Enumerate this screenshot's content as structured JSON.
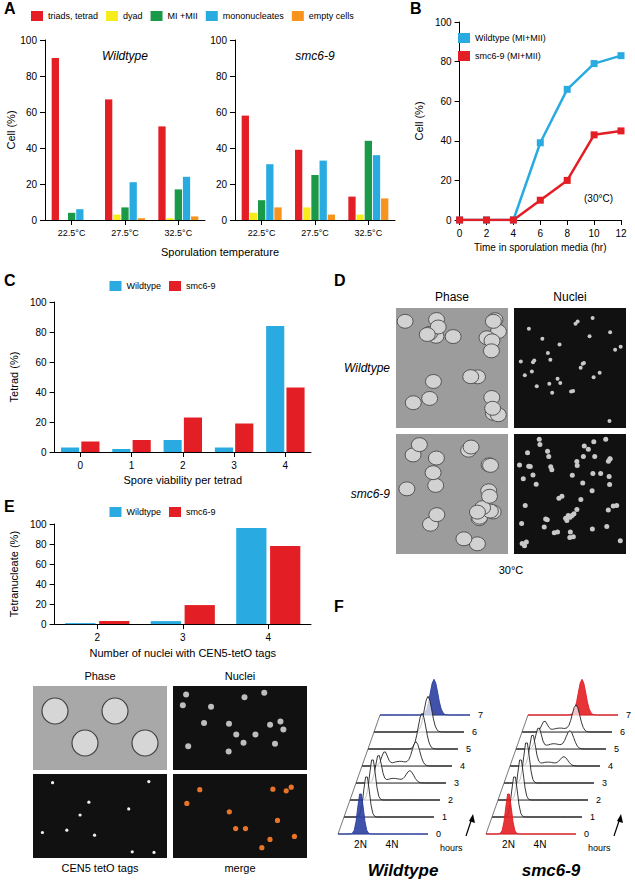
{
  "panel_labels": [
    "A",
    "B",
    "C",
    "D",
    "E",
    "F"
  ],
  "chart_data": [
    {
      "type": "bar",
      "title": "Wildtype",
      "xlabel": "Sporulation temperature",
      "ylabel": "Cell (%)",
      "categories": [
        "22.5°C",
        "27.5°C",
        "32.5°C"
      ],
      "series": [
        {
          "name": "triads, tetrad",
          "color": "#e31e24",
          "values": [
            90,
            67,
            52
          ]
        },
        {
          "name": "dyad",
          "color": "#f7ec1b",
          "values": [
            0,
            3,
            1
          ]
        },
        {
          "name": "MI +MII",
          "color": "#1a9a48",
          "values": [
            4,
            7,
            17
          ]
        },
        {
          "name": "mononucleates",
          "color": "#29abe2",
          "values": [
            6,
            21,
            24
          ]
        },
        {
          "name": "empty cells",
          "color": "#f7941d",
          "values": [
            0,
            1,
            2
          ]
        }
      ],
      "ylim": [
        0,
        100
      ],
      "yticks": [
        0,
        20,
        40,
        60,
        80,
        100
      ],
      "legend": "top"
    },
    {
      "type": "bar",
      "title": "smc6-9",
      "categories": [
        "22.5°C",
        "27.5°C",
        "32.5°C"
      ],
      "series": [
        {
          "name": "triads, tetrad",
          "color": "#e31e24",
          "values": [
            58,
            39,
            13
          ]
        },
        {
          "name": "dyad",
          "color": "#f7ec1b",
          "values": [
            4,
            7,
            3
          ]
        },
        {
          "name": "MI +MII",
          "color": "#1a9a48",
          "values": [
            11,
            25,
            44
          ]
        },
        {
          "name": "mononucleates",
          "color": "#29abe2",
          "values": [
            31,
            33,
            36
          ]
        },
        {
          "name": "empty cells",
          "color": "#f7941d",
          "values": [
            7,
            3,
            12
          ]
        }
      ],
      "ylim": [
        0,
        100
      ],
      "yticks": [
        0,
        20,
        40,
        60,
        80,
        100
      ]
    },
    {
      "type": "line",
      "xlabel": "Time in sporulation media (hr)",
      "ylabel": "Cell (%)",
      "x": [
        0,
        2,
        4,
        6,
        8,
        10,
        12
      ],
      "series": [
        {
          "name": "Wildtype (MI+MII)",
          "color": "#29abe2",
          "values": [
            0,
            0,
            0,
            39,
            66,
            79,
            83
          ]
        },
        {
          "name": "smc6-9 (MI+MII)",
          "color": "#e31e24",
          "values": [
            0,
            0,
            0,
            10,
            20,
            43,
            45
          ]
        }
      ],
      "xlim": [
        0,
        12
      ],
      "xticks": [
        0,
        2,
        4,
        6,
        8,
        10,
        12
      ],
      "ylim": [
        0,
        100
      ],
      "yticks": [
        0,
        20,
        40,
        60,
        80,
        100
      ],
      "marker": "square",
      "annotations": [
        "(30°C)"
      ],
      "legend": "top left"
    },
    {
      "type": "bar",
      "xlabel": "Spore viability per tetrad",
      "ylabel": "Tetrad (%)",
      "categories": [
        "0",
        "1",
        "2",
        "3",
        "4"
      ],
      "series": [
        {
          "name": "Wildtype",
          "color": "#29abe2",
          "values": [
            3,
            2,
            8,
            3,
            84
          ]
        },
        {
          "name": "smc6-9",
          "color": "#e31e24",
          "values": [
            7,
            8,
            23,
            19,
            43
          ]
        }
      ],
      "ylim": [
        0,
        100
      ],
      "yticks": [
        0,
        20,
        40,
        60,
        80,
        100
      ],
      "legend": "top"
    },
    {
      "type": "bar",
      "xlabel": "Number of nuclei with CEN5-tetO tags",
      "ylabel": "Tetranucleate (%)",
      "categories": [
        "2",
        "3",
        "4"
      ],
      "series": [
        {
          "name": "Wildtype",
          "color": "#29abe2",
          "values": [
            1,
            3,
            96
          ]
        },
        {
          "name": "smc6-9",
          "color": "#e31e24",
          "values": [
            3,
            19,
            78
          ]
        }
      ],
      "ylim": [
        0,
        100
      ],
      "yticks": [
        0,
        20,
        40,
        60,
        80,
        100
      ],
      "legend": "top"
    }
  ],
  "micrographs_D": {
    "columns": [
      "Phase",
      "Nuclei"
    ],
    "rows": [
      "Wildtype",
      "smc6-9"
    ],
    "caption": "30°C"
  },
  "micrographs_E": {
    "top_labels": [
      "Phase",
      "Nuclei"
    ],
    "bottom_labels": [
      "CEN5 tetO tags",
      "merge"
    ]
  },
  "facs_F": {
    "panels": [
      {
        "title": "Wildtype",
        "color": "#2b3fa0"
      },
      {
        "title": "smc6-9",
        "color": "#e31e24"
      }
    ],
    "x_labels": [
      "2N",
      "4N"
    ],
    "hours": [
      0,
      1,
      2,
      3,
      4,
      5,
      6,
      7
    ],
    "hours_label": "hours"
  }
}
